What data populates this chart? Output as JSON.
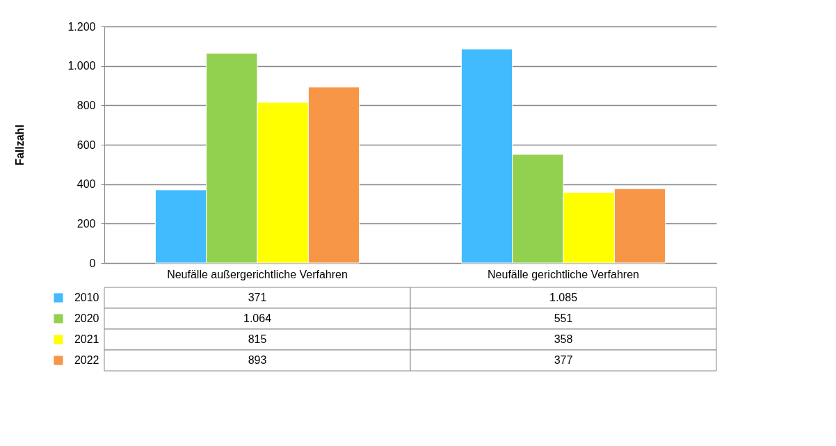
{
  "chart_data": {
    "type": "bar",
    "ylabel": "Fallzahl",
    "categories": [
      "Neufälle außergerichtliche Verfahren",
      "Neufälle gerichtliche Verfahren"
    ],
    "series": [
      {
        "name": "2010",
        "color": "#41bbfe",
        "values": [
          371,
          1085
        ],
        "value_labels": [
          "371",
          "1.085"
        ]
      },
      {
        "name": "2020",
        "color": "#92d050",
        "values": [
          1064,
          551
        ],
        "value_labels": [
          "1.064",
          "551"
        ]
      },
      {
        "name": "2021",
        "color": "#ffff00",
        "values": [
          815,
          358
        ],
        "value_labels": [
          "815",
          "358"
        ]
      },
      {
        "name": "2022",
        "color": "#f79646",
        "values": [
          893,
          377
        ],
        "value_labels": [
          "893",
          "377"
        ]
      }
    ],
    "ylim": [
      0,
      1200
    ],
    "yticks": [
      0,
      200,
      400,
      600,
      800,
      {
        "value": 1000,
        "label": "1.000"
      },
      {
        "value": 1200,
        "label": "1.200"
      }
    ],
    "grid": "y",
    "legend": "bottom"
  }
}
